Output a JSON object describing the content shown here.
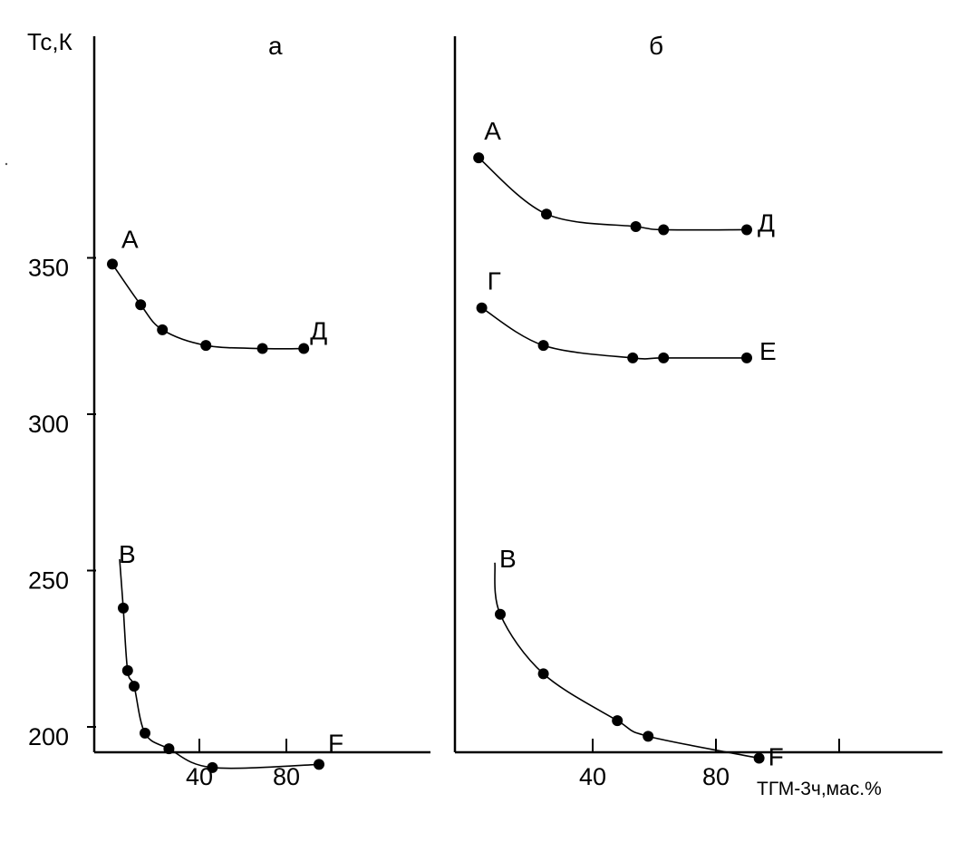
{
  "chart_data": [
    {
      "type": "scatter",
      "panel_label": "а",
      "ylabel": "Тс,К",
      "xlabel": "",
      "xlim": [
        -5,
        130
      ],
      "ylim": [
        165,
        375
      ],
      "x_ticks": [
        40,
        80
      ],
      "y_ticks": [
        200,
        250,
        300,
        350
      ],
      "grid": false,
      "series": [
        {
          "start_label": "А",
          "end_label": "Д",
          "points": [
            [
              0,
              348
            ],
            [
              13,
              335
            ],
            [
              23,
              327
            ],
            [
              43,
              322
            ],
            [
              69,
              321
            ],
            [
              88,
              321
            ]
          ]
        },
        {
          "start_label": "B",
          "end_label": "F",
          "points": [
            [
              5,
              238
            ],
            [
              7,
              218
            ],
            [
              10,
              213
            ],
            [
              15,
              198
            ],
            [
              26,
              193
            ],
            [
              46,
              187
            ],
            [
              95,
              188
            ]
          ]
        }
      ]
    },
    {
      "type": "scatter",
      "panel_label": "б",
      "ylabel": "",
      "xlabel": "ТГМ-3ч,мас.%",
      "xlim": [
        -5,
        130
      ],
      "ylim": [
        165,
        375
      ],
      "x_ticks": [
        40,
        80
      ],
      "y_ticks": [],
      "grid": false,
      "series": [
        {
          "start_label": "А",
          "end_label": "Д",
          "points": [
            [
              3,
              382
            ],
            [
              25,
              364
            ],
            [
              54,
              360
            ],
            [
              63,
              359
            ],
            [
              90,
              359
            ]
          ]
        },
        {
          "start_label": "Г",
          "end_label": "Е",
          "points": [
            [
              4,
              334
            ],
            [
              24,
              322
            ],
            [
              53,
              318
            ],
            [
              63,
              318
            ],
            [
              90,
              318
            ]
          ]
        },
        {
          "start_label": "B",
          "end_label": "F",
          "points": [
            [
              10,
              236
            ],
            [
              24,
              217
            ],
            [
              48,
              202
            ],
            [
              58,
              197
            ],
            [
              94,
              190
            ]
          ]
        }
      ]
    }
  ]
}
